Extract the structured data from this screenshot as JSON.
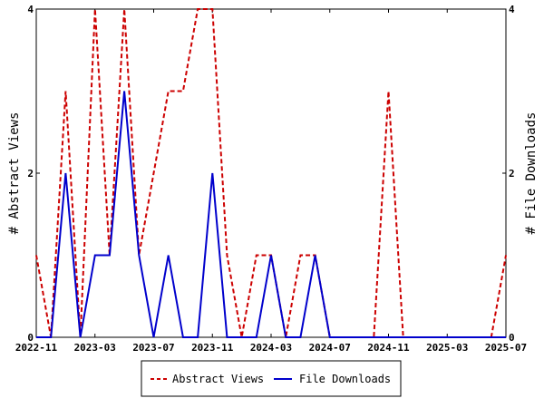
{
  "chart_data": {
    "type": "line",
    "x": [
      "2022-11",
      "2022-12",
      "2023-01",
      "2023-02",
      "2023-03",
      "2023-04",
      "2023-05",
      "2023-06",
      "2023-07",
      "2023-08",
      "2023-09",
      "2023-10",
      "2023-11",
      "2023-12",
      "2024-01",
      "2024-02",
      "2024-03",
      "2024-04",
      "2024-05",
      "2024-06",
      "2024-07",
      "2024-08",
      "2024-09",
      "2024-10",
      "2024-11",
      "2024-12",
      "2025-01",
      "2025-02",
      "2025-03",
      "2025-04",
      "2025-05",
      "2025-06",
      "2025-07"
    ],
    "x_tick_labels": [
      "2022-11",
      "2023-03",
      "2023-07",
      "2023-11",
      "2024-03",
      "2024-07",
      "2024-11",
      "2025-03",
      "2025-07"
    ],
    "series": [
      {
        "name": "Abstract Views",
        "axis": "left",
        "color": "#cc0000",
        "dash": "dashed",
        "values": [
          1,
          0,
          3,
          0,
          4,
          1,
          4,
          1,
          2,
          3,
          3,
          4,
          4,
          1,
          0,
          1,
          1,
          0,
          1,
          1,
          0,
          0,
          0,
          0,
          3,
          0,
          0,
          0,
          0,
          0,
          0,
          0,
          1
        ]
      },
      {
        "name": "File Downloads",
        "axis": "right",
        "color": "#0000cc",
        "dash": "solid",
        "values": [
          0,
          0,
          2,
          0,
          1,
          1,
          3,
          1,
          0,
          1,
          0,
          0,
          2,
          0,
          0,
          0,
          1,
          0,
          0,
          1,
          0,
          0,
          0,
          0,
          0,
          0,
          0,
          0,
          0,
          0,
          0,
          0,
          0
        ]
      }
    ],
    "ylabel": "# Abstract Views",
    "y2label": "# File Downloads",
    "ylim": [
      0,
      4
    ],
    "y2lim": [
      0,
      4
    ],
    "y_ticks": [
      "0",
      "2",
      "4"
    ],
    "y2_ticks": [
      "0",
      "2",
      "4"
    ],
    "grid": false,
    "legend_position": "bottom-center"
  }
}
